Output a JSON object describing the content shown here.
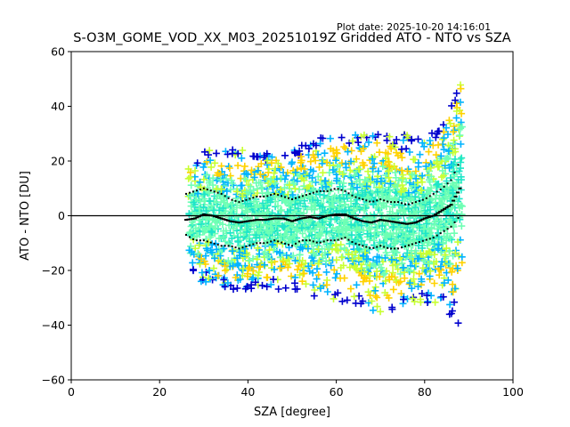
{
  "header": {
    "plot_date": "Plot date: 2025-10-20 14:16:01"
  },
  "chart_data": {
    "type": "scatter",
    "title": "S-O3M_GOME_VOD_XX_M03_20251019Z Gridded ATO - NTO vs SZA",
    "xlabel": "SZA [degree]",
    "ylabel": "ATO - NTO [DU]",
    "xlim": [
      0,
      100
    ],
    "ylim": [
      -60,
      60
    ],
    "xticks": [
      0,
      20,
      40,
      60,
      80,
      100
    ],
    "yticks": [
      -60,
      -40,
      -20,
      0,
      20,
      40,
      60
    ],
    "xtick_labels": [
      "0",
      "20",
      "40",
      "60",
      "80",
      "100"
    ],
    "ytick_labels": [
      "−60",
      "−40",
      "−20",
      "0",
      "20",
      "40",
      "60"
    ],
    "reference_line_y": 0,
    "marker": "+",
    "colors": {
      "dark_blue": "#0000cd",
      "light_blue": "#00b4ff",
      "cyan": "#1ee6c8",
      "aquamarine": "#6effb4",
      "yellow_green": "#c8ff32",
      "gold": "#ffd200",
      "axis": "#000000"
    },
    "mean_curve": {
      "sza": [
        26,
        28,
        30,
        32,
        34,
        36,
        38,
        40,
        42,
        44,
        46,
        48,
        50,
        52,
        54,
        56,
        58,
        60,
        62,
        64,
        66,
        68,
        70,
        72,
        74,
        76,
        78,
        80,
        82,
        84,
        86,
        88
      ],
      "values": [
        -1.5,
        -1.0,
        0.5,
        0.0,
        -1.0,
        -2.0,
        -2.5,
        -2.0,
        -1.5,
        -1.5,
        -1.0,
        -1.0,
        -2.0,
        -1.0,
        -0.5,
        -1.0,
        0.0,
        0.5,
        0.5,
        -1.0,
        -2.0,
        -2.5,
        -1.5,
        -2.0,
        -2.5,
        -3.0,
        -2.5,
        -1.0,
        0.0,
        2.0,
        4.0,
        10.0
      ]
    },
    "upper_sigma_curve": {
      "sza": [
        26,
        28,
        30,
        32,
        34,
        36,
        38,
        40,
        42,
        44,
        46,
        48,
        50,
        52,
        54,
        56,
        58,
        60,
        62,
        64,
        66,
        68,
        70,
        72,
        74,
        76,
        78,
        80,
        82,
        84,
        86,
        88
      ],
      "values": [
        8,
        9,
        10,
        9,
        8,
        6,
        5,
        6,
        7,
        7,
        8,
        7,
        6,
        7,
        8,
        9,
        9,
        10,
        9,
        7,
        6,
        5,
        6,
        5,
        5,
        4,
        5,
        6,
        8,
        10,
        13,
        20
      ]
    },
    "lower_sigma_curve": {
      "sza": [
        26,
        28,
        30,
        32,
        34,
        36,
        38,
        40,
        42,
        44,
        46,
        48,
        50,
        52,
        54,
        56,
        58,
        60,
        62,
        64,
        66,
        68,
        70,
        72,
        74,
        76,
        78,
        80,
        82,
        84,
        86,
        88
      ],
      "values": [
        -7,
        -9,
        -9,
        -10,
        -11,
        -11,
        -12,
        -11,
        -10,
        -10,
        -9,
        -10,
        -11,
        -9,
        -9,
        -10,
        -9,
        -9,
        -8,
        -10,
        -11,
        -12,
        -11,
        -12,
        -12,
        -11,
        -10,
        -9,
        -8,
        -6,
        -4,
        0
      ]
    },
    "scatter_band": {
      "sza": [
        27,
        30,
        35,
        40,
        45,
        50,
        55,
        60,
        65,
        70,
        75,
        80,
        85,
        88
      ],
      "upper": [
        22,
        24,
        25,
        24,
        23,
        25,
        28,
        30,
        30,
        32,
        30,
        28,
        35,
        50
      ],
      "lower": [
        -20,
        -25,
        -27,
        -28,
        -27,
        -28,
        -30,
        -32,
        -33,
        -36,
        -33,
        -32,
        -35,
        -40
      ]
    }
  }
}
